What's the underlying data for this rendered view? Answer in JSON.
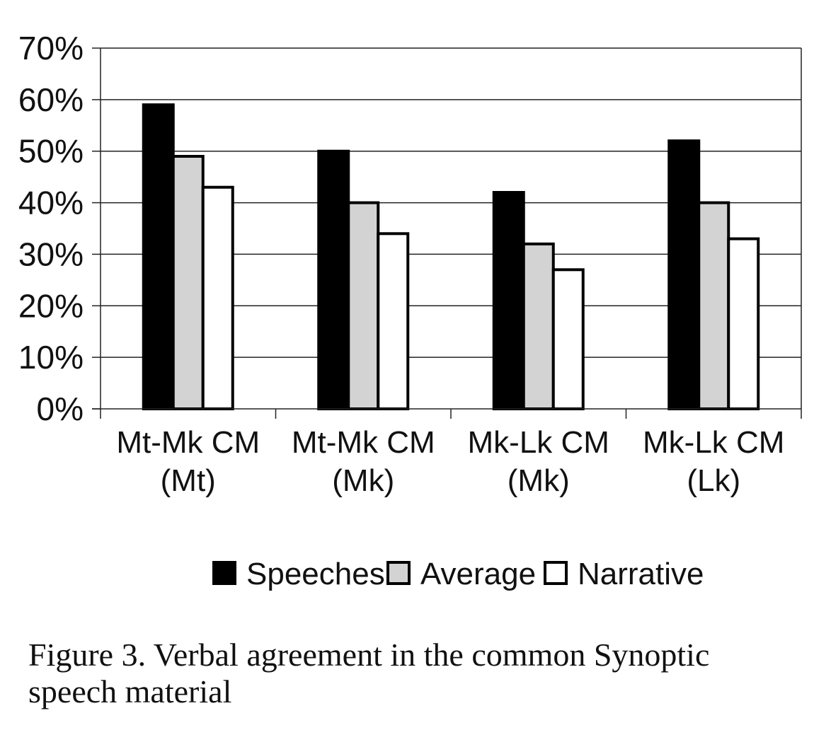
{
  "chart_data": {
    "type": "bar",
    "categories": [
      [
        "Mt-Mk CM",
        "(Mt)"
      ],
      [
        "Mt-Mk CM",
        "(Mk)"
      ],
      [
        "Mk-Lk CM",
        "(Mk)"
      ],
      [
        "Mk-Lk CM",
        "(Lk)"
      ]
    ],
    "series": [
      {
        "name": "Speeches",
        "values": [
          59,
          50,
          42,
          52
        ],
        "color": "#000000"
      },
      {
        "name": "Average",
        "values": [
          49,
          40,
          32,
          40
        ],
        "color": "#d3d3d3"
      },
      {
        "name": "Narrative",
        "values": [
          43,
          34,
          27,
          33
        ],
        "color": "#ffffff"
      }
    ],
    "ylim": [
      0,
      70
    ],
    "yticks": [
      0,
      10,
      20,
      30,
      40,
      50,
      60,
      70
    ],
    "ytick_labels": [
      "0%",
      "10%",
      "20%",
      "30%",
      "40%",
      "50%",
      "60%",
      "70%"
    ],
    "grid": true,
    "legend_position": "bottom"
  },
  "caption": "Figure 3. Verbal agreement in the common Synoptic speech material"
}
